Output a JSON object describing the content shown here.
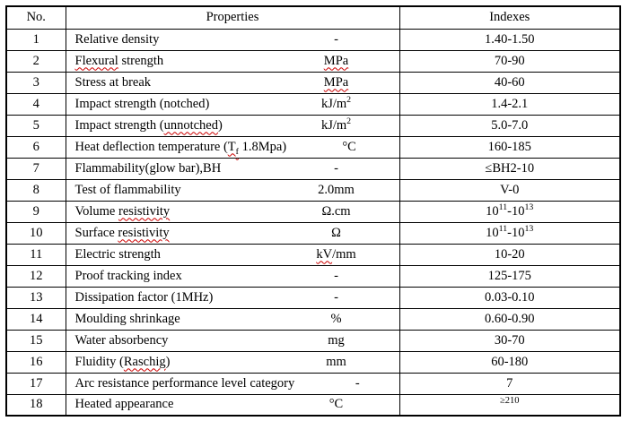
{
  "document": {
    "background_color": "#ffffff",
    "border_color": "#000000",
    "text_color": "#000000",
    "squiggle_color": "#cc0000"
  },
  "table": {
    "headers": {
      "no": "No.",
      "properties": "Properties",
      "indexes": "Indexes"
    },
    "rows": [
      {
        "no": "1",
        "property": [
          {
            "t": "Relative density"
          }
        ],
        "unit": [
          {
            "t": "-"
          }
        ],
        "index": [
          {
            "t": "1.40-1.50"
          }
        ]
      },
      {
        "no": "2",
        "property": [
          {
            "t": "Flexural",
            "sq": true
          },
          {
            "t": " strength"
          }
        ],
        "unit": [
          {
            "t": "MPa",
            "sq": true
          }
        ],
        "index": [
          {
            "t": "70-90"
          }
        ]
      },
      {
        "no": "3",
        "property": [
          {
            "t": "Stress at break"
          }
        ],
        "unit": [
          {
            "t": "MPa",
            "sq": true
          }
        ],
        "index": [
          {
            "t": "40-60"
          }
        ]
      },
      {
        "no": "4",
        "property": [
          {
            "t": "Impact strength (notched)"
          }
        ],
        "unit": [
          {
            "t": "kJ/m"
          },
          {
            "t": "2",
            "sup": true
          }
        ],
        "index": [
          {
            "t": "1.4-2.1"
          }
        ]
      },
      {
        "no": "5",
        "property": [
          {
            "t": "Impact strength ("
          },
          {
            "t": "unnotched",
            "sq": true
          },
          {
            "t": ")"
          }
        ],
        "unit": [
          {
            "t": "kJ/m"
          },
          {
            "t": "2",
            "sup": true
          }
        ],
        "index": [
          {
            "t": "5.0-7.0"
          }
        ]
      },
      {
        "no": "6",
        "property": [
          {
            "t": "Heat deflection temperature ("
          },
          {
            "t": "T",
            "sq": true
          },
          {
            "t": "f",
            "sub": true,
            "sq": true
          },
          {
            "t": " 1.8Mpa)"
          }
        ],
        "unit": [
          {
            "t": "°C"
          }
        ],
        "index": [
          {
            "t": "160-185"
          }
        ]
      },
      {
        "no": "7",
        "property": [
          {
            "t": "Flammability(glow bar),BH"
          }
        ],
        "unit": [
          {
            "t": "-"
          }
        ],
        "index": [
          {
            "t": "≤BH2-10"
          }
        ]
      },
      {
        "no": "8",
        "property": [
          {
            "t": "Test of flammability"
          }
        ],
        "unit": [
          {
            "t": "2.0mm"
          }
        ],
        "index": [
          {
            "t": "V-0"
          }
        ]
      },
      {
        "no": "9",
        "property": [
          {
            "t": "Volume "
          },
          {
            "t": "resistivity",
            "sq": true
          }
        ],
        "unit": [
          {
            "t": "Ω.cm"
          }
        ],
        "index": [
          {
            "t": "10"
          },
          {
            "t": "11",
            "sup": true
          },
          {
            "t": "-10"
          },
          {
            "t": "13",
            "sup": true
          }
        ]
      },
      {
        "no": "10",
        "property": [
          {
            "t": "Surface "
          },
          {
            "t": "resistivity",
            "sq": true
          }
        ],
        "unit": [
          {
            "t": "Ω"
          }
        ],
        "index": [
          {
            "t": "10"
          },
          {
            "t": "11",
            "sup": true
          },
          {
            "t": "-10"
          },
          {
            "t": "13",
            "sup": true
          }
        ]
      },
      {
        "no": "11",
        "property": [
          {
            "t": "Electric strength"
          }
        ],
        "unit": [
          {
            "t": "kV",
            "sq": true
          },
          {
            "t": "/mm"
          }
        ],
        "index": [
          {
            "t": "10-20"
          }
        ]
      },
      {
        "no": "12",
        "property": [
          {
            "t": "Proof tracking index"
          }
        ],
        "unit": [
          {
            "t": "-"
          }
        ],
        "index": [
          {
            "t": "125-175"
          }
        ]
      },
      {
        "no": "13",
        "property": [
          {
            "t": "Dissipation factor (1MHz)"
          }
        ],
        "unit": [
          {
            "t": "-"
          }
        ],
        "index": [
          {
            "t": "0.03-0.10"
          }
        ]
      },
      {
        "no": "14",
        "property": [
          {
            "t": "Moulding shrinkage"
          }
        ],
        "unit": [
          {
            "t": "%"
          }
        ],
        "index": [
          {
            "t": "0.60-0.90"
          }
        ]
      },
      {
        "no": "15",
        "property": [
          {
            "t": "Water absorbency"
          }
        ],
        "unit": [
          {
            "t": "mg"
          }
        ],
        "index": [
          {
            "t": "30-70"
          }
        ]
      },
      {
        "no": "16",
        "property": [
          {
            "t": "Fluidity ("
          },
          {
            "t": "Raschig",
            "sq": true
          },
          {
            "t": ")"
          }
        ],
        "unit": [
          {
            "t": "mm"
          }
        ],
        "index": [
          {
            "t": "60-180"
          }
        ]
      },
      {
        "no": "17",
        "property": [
          {
            "t": "Arc resistance performance level category"
          }
        ],
        "unit": [
          {
            "t": "-"
          }
        ],
        "index": [
          {
            "t": "7"
          }
        ]
      },
      {
        "no": "18",
        "property": [
          {
            "t": "Heated appearance"
          }
        ],
        "unit": [
          {
            "t": "°C"
          }
        ],
        "index": [
          {
            "t": "≥210"
          }
        ],
        "index_raised": true
      }
    ]
  }
}
